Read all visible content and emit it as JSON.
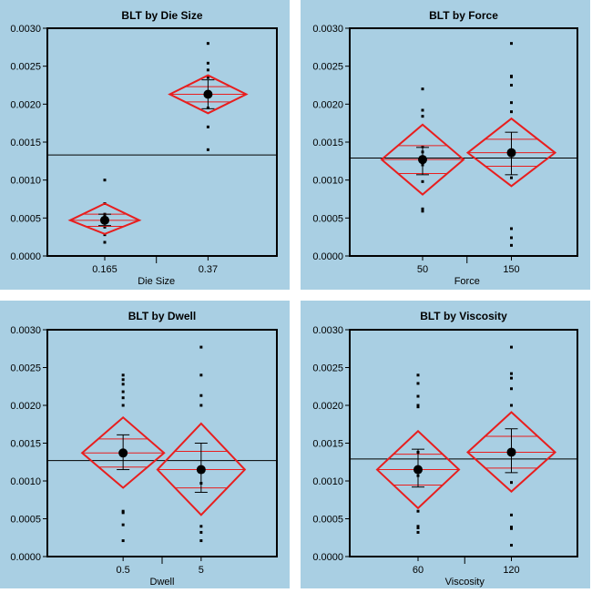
{
  "colors": {
    "panel_bg": "#a9cfe3",
    "diamond": "#e81e1e",
    "points": "#000000",
    "grand_mean_line": "#000000",
    "frame": "#000000"
  },
  "chart_data": [
    {
      "type": "scatter",
      "title": "BLT by Die Size",
      "xlabel": "Die Size",
      "ylabel": "",
      "ylim": [
        0,
        0.003
      ],
      "yticks": [
        "0.0000",
        "0.0005",
        "0.0010",
        "0.0015",
        "0.0020",
        "0.0025",
        "0.0030"
      ],
      "categories": [
        "0.165",
        "0.37"
      ],
      "grand_mean": 0.00133,
      "groups": [
        {
          "name": "0.165",
          "mean": 0.00047,
          "ci": [
            0.00029,
            0.00069
          ],
          "sd_bar": [
            0.0004,
            0.00055
          ],
          "points": [
            0.001,
            0.00069,
            0.00055,
            0.00052,
            0.00049,
            0.00045,
            0.00038,
            0.00028,
            0.00018
          ]
        },
        {
          "name": "0.37",
          "mean": 0.00213,
          "ci": [
            0.00188,
            0.00238
          ],
          "sd_bar": [
            0.00194,
            0.00232
          ],
          "points": [
            0.0028,
            0.00254,
            0.00245,
            0.00235,
            0.00213,
            0.00195,
            0.0017,
            0.0014
          ]
        }
      ]
    },
    {
      "type": "scatter",
      "title": "BLT by Force",
      "xlabel": "Force",
      "ylabel": "",
      "ylim": [
        0,
        0.003
      ],
      "yticks": [
        "0.0000",
        "0.0005",
        "0.0010",
        "0.0015",
        "0.0020",
        "0.0025",
        "0.0030"
      ],
      "categories": [
        "50",
        "150"
      ],
      "grand_mean": 0.00129,
      "groups": [
        {
          "name": "50",
          "mean": 0.00127,
          "ci": [
            0.00081,
            0.00173
          ],
          "sd_bar": [
            0.00107,
            0.00143
          ],
          "points": [
            0.0022,
            0.00192,
            0.00184,
            0.00144,
            0.00137,
            0.0012,
            0.00098,
            0.00062,
            0.00059
          ]
        },
        {
          "name": "150",
          "mean": 0.00136,
          "ci": [
            0.00092,
            0.00181
          ],
          "sd_bar": [
            0.00107,
            0.00163
          ],
          "points": [
            0.0028,
            0.00237,
            0.00236,
            0.00225,
            0.00202,
            0.0019,
            0.00103,
            0.00036,
            0.00024,
            0.00014
          ]
        }
      ]
    },
    {
      "type": "scatter",
      "title": "BLT by Dwell",
      "xlabel": "Dwell",
      "ylabel": "",
      "ylim": [
        0,
        0.003
      ],
      "yticks": [
        "0.0000",
        "0.0005",
        "0.0010",
        "0.0015",
        "0.0020",
        "0.0025",
        "0.0030"
      ],
      "categories": [
        "0.5",
        "5"
      ],
      "grand_mean": 0.00127,
      "groups": [
        {
          "name": "0.5",
          "mean": 0.00137,
          "ci": [
            0.00091,
            0.00184
          ],
          "sd_bar": [
            0.00115,
            0.00161
          ],
          "points": [
            0.0024,
            0.00234,
            0.00228,
            0.00218,
            0.0021,
            0.002,
            0.0006,
            0.00058,
            0.00042,
            0.00021
          ]
        },
        {
          "name": "5",
          "mean": 0.00115,
          "ci": [
            0.00055,
            0.00176
          ],
          "sd_bar": [
            0.00085,
            0.0015
          ],
          "points": [
            0.00277,
            0.0024,
            0.00213,
            0.002,
            0.00097,
            0.0004,
            0.00032,
            0.00021
          ]
        }
      ]
    },
    {
      "type": "scatter",
      "title": "BLT by Viscosity",
      "xlabel": "Viscosity",
      "ylabel": "",
      "ylim": [
        0,
        0.003
      ],
      "yticks": [
        "0.0000",
        "0.0005",
        "0.0010",
        "0.0015",
        "0.0020",
        "0.0025",
        "0.0030"
      ],
      "categories": [
        "60",
        "120"
      ],
      "grand_mean": 0.00129,
      "groups": [
        {
          "name": "60",
          "mean": 0.00115,
          "ci": [
            0.00064,
            0.00166
          ],
          "sd_bar": [
            0.00092,
            0.00142
          ],
          "points": [
            0.0024,
            0.00229,
            0.00212,
            0.002,
            0.00198,
            0.00138,
            0.00107,
            0.0006,
            0.0004,
            0.00038,
            0.00032
          ]
        },
        {
          "name": "120",
          "mean": 0.00138,
          "ci": [
            0.00086,
            0.00191
          ],
          "sd_bar": [
            0.00111,
            0.00169
          ],
          "points": [
            0.00277,
            0.00242,
            0.00236,
            0.00222,
            0.002,
            0.00098,
            0.00055,
            0.00039,
            0.00037,
            0.00015
          ]
        }
      ]
    }
  ]
}
